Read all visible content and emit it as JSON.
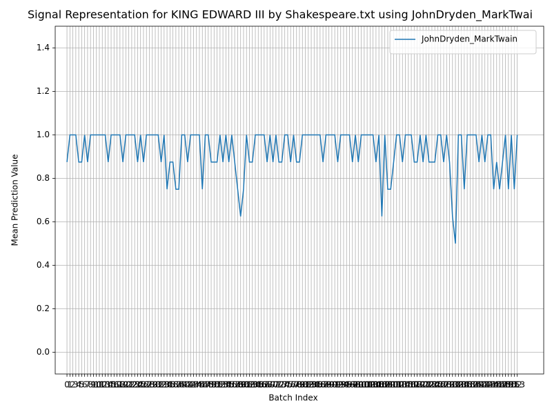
{
  "chart_data": {
    "type": "line",
    "title": "Signal Representation for KING EDWARD III by Shakespeare.txt using JohnDryden_MarkTwai",
    "xlabel": "Batch Index",
    "ylabel": "Mean Prediction Value",
    "x": [
      0,
      1,
      2,
      3,
      4,
      5,
      6,
      7,
      8,
      9,
      10,
      11,
      12,
      13,
      14,
      15,
      16,
      17,
      18,
      19,
      20,
      21,
      22,
      23,
      24,
      25,
      26,
      27,
      28,
      29,
      30,
      31,
      32,
      33,
      34,
      35,
      36,
      37,
      38,
      39,
      40,
      41,
      42,
      43,
      44,
      45,
      46,
      47,
      48,
      49,
      50,
      51,
      52,
      53,
      54,
      55,
      56,
      57,
      58,
      59,
      60,
      61,
      62,
      63,
      64,
      65,
      66,
      67,
      68,
      69,
      70,
      71,
      72,
      73,
      74,
      75,
      76,
      77,
      78,
      79,
      80,
      81,
      82,
      83,
      84,
      85,
      86,
      87,
      88,
      89,
      90,
      91,
      92,
      93,
      94,
      95,
      96,
      97,
      98,
      99,
      100,
      101,
      102,
      103,
      104,
      105,
      106,
      107,
      108,
      109,
      110,
      111,
      112,
      113,
      114,
      115,
      116,
      117,
      118,
      119,
      120,
      121,
      122,
      123,
      124,
      125,
      126,
      127,
      128,
      129,
      130,
      131,
      132,
      133,
      134,
      135,
      136,
      137,
      138,
      139,
      140,
      141,
      142,
      143,
      144,
      145,
      146,
      147,
      148,
      149,
      150,
      151,
      152,
      153
    ],
    "series": [
      {
        "name": "JohnDryden_MarkTwain",
        "color": "#1f77b4",
        "values": [
          0.875,
          1,
          1,
          1,
          0.875,
          0.875,
          1,
          0.875,
          1,
          1,
          1,
          1,
          1,
          1,
          0.875,
          1,
          1,
          1,
          1,
          0.875,
          1,
          1,
          1,
          1,
          0.875,
          1,
          0.875,
          1,
          1,
          1,
          1,
          1,
          0.875,
          1,
          0.75,
          0.875,
          0.875,
          0.75,
          0.75,
          1,
          1,
          0.875,
          1,
          1,
          1,
          1,
          0.75,
          1,
          1,
          0.875,
          0.875,
          0.875,
          1,
          0.875,
          1,
          0.875,
          1,
          0.875,
          0.75,
          0.625,
          0.75,
          1,
          0.875,
          0.875,
          1,
          1,
          1,
          1,
          0.875,
          1,
          0.875,
          1,
          0.875,
          0.875,
          1,
          1,
          0.875,
          1,
          0.875,
          0.875,
          1,
          1,
          1,
          1,
          1,
          1,
          1,
          0.875,
          1,
          1,
          1,
          1,
          0.875,
          1,
          1,
          1,
          1,
          0.875,
          1,
          0.875,
          1,
          1,
          1,
          1,
          1,
          0.875,
          1,
          0.625,
          1,
          0.75,
          0.75,
          0.875,
          1,
          1,
          0.875,
          1,
          1,
          1,
          0.875,
          0.875,
          1,
          0.875,
          1,
          0.875,
          0.875,
          0.875,
          1,
          1,
          0.875,
          1,
          0.875,
          0.625,
          0.5,
          1,
          1,
          0.75,
          1,
          1,
          1,
          1,
          0.875,
          1,
          0.875,
          1,
          1,
          0.75,
          0.875,
          0.75,
          0.875,
          1,
          0.75,
          1,
          0.75,
          1
        ]
      }
    ],
    "xlim": [
      -4,
      162
    ],
    "xticks": [
      0,
      1,
      2,
      3,
      4,
      5,
      6,
      7,
      8,
      9,
      10,
      11,
      12,
      13,
      14,
      15,
      16,
      17,
      18,
      19,
      20,
      21,
      22,
      23,
      24,
      25,
      26,
      27,
      28,
      29,
      30,
      31,
      32,
      33,
      34,
      35,
      36,
      37,
      38,
      39,
      40,
      41,
      42,
      43,
      44,
      45,
      46,
      47,
      48,
      49,
      50,
      51,
      52,
      53,
      54,
      55,
      56,
      57,
      58,
      59,
      60,
      61,
      62,
      63,
      64,
      65,
      66,
      67,
      68,
      69,
      70,
      71,
      72,
      73,
      74,
      75,
      76,
      77,
      78,
      79,
      80,
      81,
      82,
      83,
      84,
      85,
      86,
      87,
      88,
      89,
      90,
      91,
      92,
      93,
      94,
      95,
      96,
      97,
      98,
      99,
      100,
      101,
      102,
      103,
      104,
      105,
      106,
      107,
      108,
      109,
      110,
      111,
      112,
      113,
      114,
      115,
      116,
      117,
      118,
      119,
      120,
      121,
      122,
      123,
      124,
      125,
      126,
      127,
      128,
      129,
      130,
      131,
      132,
      133,
      134,
      135,
      136,
      137,
      138,
      139,
      140,
      141,
      142,
      143,
      144,
      145,
      146,
      147,
      148,
      149,
      150,
      151,
      152,
      153
    ],
    "ylim": [
      -0.1,
      1.5
    ],
    "yticks": [
      {
        "value": 0,
        "label": "0.0"
      },
      0.2,
      0.4,
      0.6,
      0.8,
      {
        "value": 1,
        "label": "1.0"
      },
      1.2,
      1.4
    ],
    "grid": true,
    "legend": "upper right"
  }
}
